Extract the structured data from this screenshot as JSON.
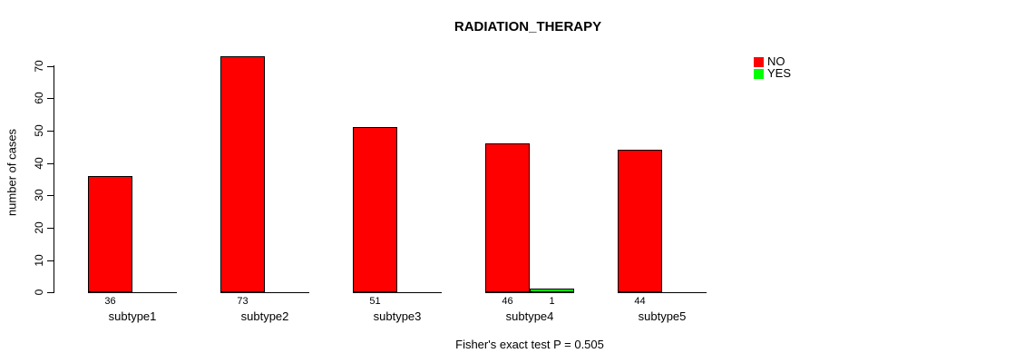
{
  "title": "RADIATION_THERAPY",
  "footer": "Fisher's exact test P = 0.505",
  "y_axis": {
    "label": "number of cases"
  },
  "legend": {
    "items": [
      {
        "label": "NO",
        "color": "#FF0000"
      },
      {
        "label": "YES",
        "color": "#00FF00"
      }
    ]
  },
  "chart_data": {
    "type": "bar",
    "title": "RADIATION_THERAPY",
    "categories": [
      "subtype1",
      "subtype2",
      "subtype3",
      "subtype4",
      "subtype5"
    ],
    "series": [
      {
        "name": "NO",
        "color": "#FF0000",
        "values": [
          36,
          73,
          51,
          46,
          44
        ]
      },
      {
        "name": "YES",
        "color": "#00FF00",
        "values": [
          0,
          0,
          0,
          1,
          0
        ]
      }
    ],
    "xlabel": "",
    "ylabel": "number of cases",
    "ylim": [
      0,
      70
    ],
    "yticks": [
      0,
      10,
      20,
      30,
      40,
      50,
      60,
      70
    ],
    "grid": false,
    "legend_position": "top-right",
    "bar_value_labels": "non-zero values printed below baseline under each bar",
    "annotation": "Fisher's exact test P = 0.505"
  }
}
